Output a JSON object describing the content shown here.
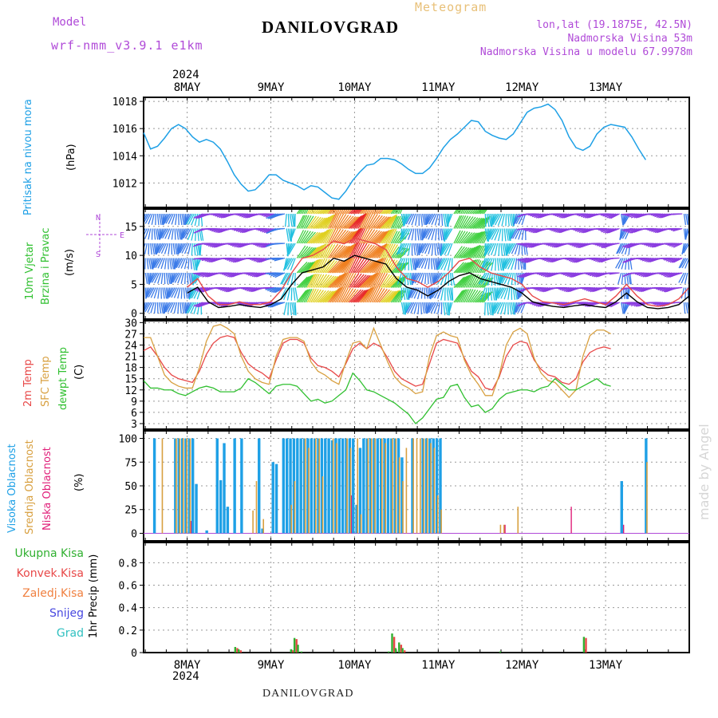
{
  "header": {
    "model_label": "Model",
    "model_name": "wrf-nmm_v3.9.1  e1km",
    "title": "DANILOVGRAD",
    "subtitle": "Meteogram",
    "coords": "lon,lat (19.1875E, 42.5N)",
    "altitude": "Nadmorska Visina 53m",
    "model_altitude": "Nadmorska Visina u modelu 67.9978m",
    "footer_title": "DANILOVGRAD",
    "credit": "made by Angel"
  },
  "time_axis": {
    "top_year": "2024",
    "bottom_year": "2024",
    "day_labels": [
      "8MAY",
      "9MAY",
      "10MAY",
      "11MAY",
      "12MAY",
      "13MAY"
    ]
  },
  "colors": {
    "pressure": "#1ea0e6",
    "temp2m": "#e84848",
    "sfc_temp": "#d8a040",
    "dewpt": "#30c030",
    "high_cloud": "#1ea0e6",
    "mid_cloud": "#d8a040",
    "low_cloud": "#e0207a",
    "total_precip": "#30b030",
    "conv_precip": "#e84848",
    "freezing_rain": "#f08040",
    "snow": "#4848e0",
    "hail": "#30c0c0",
    "purple_text": "#b04ad8",
    "subtitle": "#e8c078"
  },
  "panels": {
    "pressure": {
      "label1": "Pritisak na nivou mora",
      "unit": "(hPa)",
      "ticks": [
        "1012",
        "1014",
        "1016",
        "1018"
      ]
    },
    "wind": {
      "label1": "10m Vjetar",
      "label2": "Brzina i Pravac",
      "unit": "(m/s)",
      "ticks": [
        "0",
        "5",
        "10",
        "15"
      ],
      "compass_n": "N",
      "compass_s": "S",
      "compass_w": "W",
      "compass_e": "E"
    },
    "temp": {
      "label1": "2m Temp",
      "label2": "SFC Temp",
      "label3": "dewpt Temp",
      "unit": "(C)",
      "ticks": [
        "3",
        "6",
        "9",
        "12",
        "15",
        "18",
        "21",
        "24",
        "27",
        "30"
      ]
    },
    "cloud": {
      "label1": "Visoka Oblacnost",
      "label2": "Srednja Oblacnost",
      "label3": "Niska Oblacnost",
      "unit": "(%)",
      "ticks": [
        "0",
        "25",
        "50",
        "75",
        "100"
      ]
    },
    "precip": {
      "unit": "1hr Precip (mm)",
      "ticks": [
        "0",
        "0.2",
        "0.4",
        "0.6",
        "0.8"
      ],
      "legend": [
        "Ukupna Kisa",
        "Konvek.Kisa",
        "Zaledj.Kisa",
        "Snijeg",
        "Grad"
      ]
    }
  },
  "chart_data": [
    {
      "type": "line",
      "title": "Pritisak na nivou mora",
      "ylabel": "(hPa)",
      "ylim": [
        1010.2,
        1018.3
      ],
      "x_hours": [
        0,
        2,
        4,
        6,
        8,
        10,
        12,
        14,
        16,
        18,
        20,
        22,
        24,
        26,
        28,
        30,
        32,
        34,
        36,
        38,
        40,
        42,
        44,
        46,
        48,
        50,
        52,
        54,
        56,
        58,
        60,
        62,
        64,
        66,
        68,
        70,
        72,
        74,
        76,
        78,
        80,
        82,
        84,
        86,
        88,
        90,
        92,
        94,
        96,
        98,
        100,
        102,
        104,
        106,
        108,
        110,
        112,
        114,
        116,
        118,
        120,
        122,
        124,
        126,
        128,
        130,
        132,
        134,
        136,
        138,
        140,
        142,
        144
      ],
      "series": [
        {
          "values": [
            1015.7,
            1014.5,
            1014.7,
            1015.3,
            1016.0,
            1016.3,
            1016.0,
            1015.4,
            1015.0,
            1015.2,
            1015.0,
            1014.5,
            1013.6,
            1012.6,
            1011.9,
            1011.4,
            1011.5,
            1012.0,
            1012.6,
            1012.6,
            1012.2,
            1012.0,
            1011.8,
            1011.5,
            1011.8,
            1011.7,
            1011.3,
            1010.9,
            1010.8,
            1011.4,
            1012.2,
            1012.8,
            1013.3,
            1013.4,
            1013.8,
            1013.8,
            1013.7,
            1013.4,
            1013.0,
            1012.7,
            1012.7,
            1013.1,
            1013.8,
            1014.6,
            1015.2,
            1015.6,
            1016.1,
            1016.6,
            1016.5,
            1015.8,
            1015.5,
            1015.3,
            1015.2,
            1015.6,
            1016.4,
            1017.2,
            1017.5,
            1017.6,
            1017.8,
            1017.4,
            1016.6,
            1015.4,
            1014.6,
            1014.4,
            1014.7,
            1015.6,
            1016.1,
            1016.3,
            1016.2,
            1016.1,
            1015.4,
            1014.5,
            1013.7
          ]
        }
      ]
    },
    {
      "type": "line",
      "title": "10m Vjetar Brzina i Pravac",
      "ylabel": "(m/s)",
      "ylim": [
        -1,
        18
      ],
      "x_hours": [
        0,
        3,
        6,
        9,
        12,
        15,
        18,
        21,
        24,
        27,
        30,
        33,
        36,
        39,
        42,
        45,
        48,
        51,
        54,
        57,
        60,
        63,
        66,
        69,
        72,
        75,
        78,
        81,
        84,
        87,
        90,
        93,
        96,
        99,
        102,
        105,
        108,
        111,
        114,
        117,
        120,
        123,
        126,
        129,
        132,
        135,
        138,
        141,
        144
      ],
      "series": [
        {
          "values": [
            3.5,
            4.5,
            2.0,
            1.0,
            1.2,
            1.5,
            1.2,
            1.0,
            1.5,
            2.5,
            5.0,
            7.0,
            7.5,
            8.0,
            9.5,
            9.0,
            10.0,
            9.5,
            9.0,
            8.5,
            6.0,
            4.5,
            4.0,
            3.0,
            4.0,
            5.5,
            6.5,
            7.0,
            6.0,
            5.5,
            5.0,
            4.5,
            3.5,
            2.0,
            1.5,
            1.2,
            1.0,
            1.3,
            1.5,
            1.2,
            1.0,
            2.0,
            3.5,
            2.0,
            1.0,
            0.8,
            1.0,
            1.5,
            3.0
          ]
        },
        {
          "values": [
            4.5,
            6.0,
            3.0,
            1.5,
            1.5,
            2.0,
            1.5,
            1.5,
            2.0,
            4.0,
            7.0,
            9.5,
            10.0,
            11.0,
            12.5,
            12.0,
            13.0,
            12.5,
            12.0,
            11.0,
            8.0,
            6.0,
            5.5,
            4.5,
            5.5,
            7.0,
            9.0,
            9.5,
            8.0,
            7.0,
            6.5,
            6.0,
            5.0,
            3.0,
            2.0,
            1.8,
            1.5,
            2.0,
            2.5,
            2.0,
            1.5,
            3.0,
            5.0,
            3.0,
            1.5,
            1.2,
            1.5,
            2.5,
            4.5
          ]
        }
      ]
    },
    {
      "type": "line",
      "title": "2m Temp / SFC Temp / dewpt Temp",
      "ylabel": "(C)",
      "ylim": [
        1.5,
        30.5
      ],
      "x_hours": [
        0,
        2,
        4,
        6,
        8,
        10,
        12,
        14,
        16,
        18,
        20,
        22,
        24,
        26,
        28,
        30,
        32,
        34,
        36,
        38,
        40,
        42,
        44,
        46,
        48,
        50,
        52,
        54,
        56,
        58,
        60,
        62,
        64,
        66,
        68,
        70,
        72,
        74,
        76,
        78,
        80,
        82,
        84,
        86,
        88,
        90,
        92,
        94,
        96,
        98,
        100,
        102,
        104,
        106,
        108,
        110,
        112,
        114,
        116,
        118,
        120,
        122,
        124,
        126,
        128,
        130,
        132,
        134,
        136,
        138,
        140,
        142,
        144
      ],
      "series": [
        {
          "name": "2m Temp",
          "values": [
            22.5,
            23.5,
            21.0,
            18.0,
            16.0,
            15.0,
            14.5,
            14.0,
            17.0,
            21.5,
            24.5,
            26.0,
            26.5,
            26.0,
            22.0,
            19.0,
            17.5,
            16.5,
            15.0,
            20.0,
            24.5,
            25.5,
            25.5,
            24.5,
            20.5,
            18.5,
            18.0,
            17.0,
            15.5,
            19.0,
            23.0,
            24.5,
            23.0,
            24.5,
            23.5,
            20.5,
            17.0,
            15.0,
            14.0,
            13.0,
            13.5,
            19.0,
            24.5,
            25.5,
            25.0,
            24.5,
            20.5,
            17.0,
            15.5,
            12.5,
            12.0,
            15.5,
            21.0,
            24.0,
            25.0,
            24.5,
            20.0,
            17.5,
            16.0,
            15.5,
            14.0,
            13.5,
            15.0,
            19.5,
            22.0,
            23.0,
            23.5,
            23.0
          ]
        },
        {
          "name": "SFC Temp",
          "values": [
            26.0,
            26.0,
            21.0,
            16.0,
            14.0,
            13.0,
            12.5,
            12.5,
            18.0,
            25.0,
            29.0,
            29.5,
            28.5,
            27.0,
            21.0,
            17.0,
            15.0,
            14.0,
            13.5,
            21.0,
            25.5,
            26.0,
            26.0,
            25.0,
            19.5,
            17.0,
            16.0,
            14.5,
            13.5,
            19.5,
            24.5,
            25.0,
            23.0,
            28.5,
            24.0,
            19.5,
            15.5,
            13.5,
            12.5,
            11.0,
            11.5,
            21.0,
            26.5,
            27.5,
            26.5,
            26.0,
            20.0,
            16.0,
            13.5,
            10.5,
            10.5,
            16.0,
            24.0,
            27.5,
            28.5,
            27.0,
            20.5,
            16.5,
            14.5,
            14.0,
            12.0,
            10.0,
            12.0,
            21.0,
            26.5,
            28.0,
            28.0,
            27.0
          ]
        },
        {
          "name": "dewpt Temp",
          "values": [
            14.5,
            12.5,
            12.5,
            12.0,
            12.0,
            11.0,
            10.5,
            11.5,
            12.5,
            13.0,
            12.5,
            11.5,
            11.5,
            11.5,
            12.5,
            15.0,
            14.0,
            12.5,
            11.0,
            13.0,
            13.5,
            13.5,
            13.0,
            11.0,
            9.0,
            9.5,
            8.5,
            9.0,
            10.5,
            12.0,
            16.5,
            14.5,
            12.0,
            11.5,
            10.5,
            9.5,
            8.5,
            7.0,
            5.5,
            3.0,
            4.5,
            7.0,
            9.5,
            10.0,
            13.0,
            13.5,
            10.0,
            7.5,
            8.0,
            6.0,
            7.0,
            9.5,
            11.0,
            11.5,
            12.0,
            12.0,
            11.5,
            12.5,
            13.0,
            15.0,
            13.5,
            12.0,
            12.0,
            13.0,
            14.0,
            15.0,
            13.5,
            13.0
          ]
        }
      ]
    },
    {
      "type": "bar",
      "title": "Visoka / Srednja / Niska Oblacnost",
      "ylabel": "(%)",
      "ylim": [
        0,
        100
      ],
      "x_hours": [
        3,
        5,
        9,
        10,
        11,
        12,
        13,
        14,
        15,
        16,
        17,
        18,
        19,
        21,
        22,
        23,
        24,
        26,
        28,
        30,
        31,
        32,
        33,
        34,
        37,
        38,
        40,
        41,
        42,
        43,
        44,
        45,
        46,
        47,
        48,
        49,
        50,
        51,
        52,
        53,
        54,
        55,
        56,
        57,
        58,
        59,
        60,
        61,
        62,
        63,
        64,
        65,
        66,
        67,
        68,
        69,
        70,
        71,
        72,
        73,
        74,
        75,
        76,
        77,
        78,
        79,
        80,
        81,
        82,
        83,
        84,
        85,
        86,
        87,
        88,
        89,
        102,
        103,
        104,
        107,
        118,
        122,
        137,
        144
      ],
      "series": [
        {
          "name": "Visoka",
          "values": [
            100,
            0,
            100,
            100,
            100,
            100,
            100,
            100,
            52,
            0,
            0,
            3,
            0,
            100,
            56,
            95,
            28,
            100,
            100,
            0,
            0,
            0,
            100,
            5,
            75,
            73,
            100,
            100,
            100,
            100,
            100,
            100,
            100,
            100,
            100,
            100,
            100,
            100,
            100,
            100,
            98,
            100,
            100,
            100,
            100,
            100,
            100,
            30,
            90,
            100,
            100,
            100,
            100,
            100,
            100,
            100,
            100,
            100,
            100,
            100,
            80,
            0,
            0,
            100,
            0,
            0,
            100,
            100,
            100,
            100,
            100,
            100,
            0,
            0,
            0,
            0,
            0,
            0,
            0,
            0,
            0,
            0,
            55,
            100
          ]
        },
        {
          "name": "Srednja",
          "values": [
            0,
            100,
            100,
            100,
            100,
            100,
            100,
            0,
            0,
            0,
            0,
            0,
            0,
            0,
            0,
            0,
            0,
            0,
            0,
            0,
            24,
            55,
            0,
            15,
            0,
            0,
            0,
            0,
            30,
            55,
            0,
            0,
            100,
            90,
            0,
            100,
            100,
            60,
            0,
            0,
            100,
            95,
            0,
            0,
            100,
            90,
            0,
            100,
            20,
            0,
            100,
            100,
            100,
            0,
            100,
            95,
            0,
            100,
            100,
            80,
            55,
            90,
            0,
            100,
            100,
            100,
            100,
            100,
            95,
            90,
            40,
            25,
            0,
            0,
            0,
            0,
            9,
            9,
            0,
            28,
            0,
            0,
            0,
            75
          ]
        },
        {
          "name": "Niska",
          "values": [
            0,
            0,
            0,
            0,
            0,
            0,
            13,
            0,
            0,
            0,
            0,
            0,
            0,
            0,
            0,
            0,
            0,
            0,
            0,
            0,
            0,
            0,
            0,
            0,
            0,
            0,
            0,
            0,
            0,
            0,
            0,
            0,
            0,
            0,
            0,
            0,
            0,
            0,
            0,
            0,
            0,
            0,
            0,
            0,
            0,
            40,
            0,
            0,
            0,
            0,
            0,
            0,
            0,
            0,
            0,
            0,
            0,
            0,
            0,
            0,
            0,
            0,
            0,
            0,
            0,
            0,
            0,
            0,
            0,
            0,
            0,
            0,
            0,
            0,
            0,
            0,
            0,
            9,
            0,
            0,
            0,
            28,
            9,
            0
          ]
        }
      ]
    },
    {
      "type": "bar",
      "title": "1hr Precip",
      "ylabel": "1hr Precip (mm)",
      "ylim": [
        0,
        0.98
      ],
      "x_hours": [
        26,
        27,
        42,
        43,
        44,
        45,
        70,
        71,
        72,
        73,
        74,
        102,
        126
      ],
      "series": [
        {
          "name": "Ukupna Kisa",
          "values": [
            0.05,
            0.03,
            0.03,
            0.13,
            0.07,
            0.01,
            0.01,
            0.17,
            0.04,
            0.09,
            0.04,
            0.01,
            0.14
          ]
        },
        {
          "name": "Konvek.Kisa",
          "values": [
            0.04,
            0.02,
            0.02,
            0.12,
            0.0,
            0.0,
            0.0,
            0.14,
            0.0,
            0.07,
            0.02,
            0.0,
            0.13
          ]
        }
      ]
    }
  ]
}
